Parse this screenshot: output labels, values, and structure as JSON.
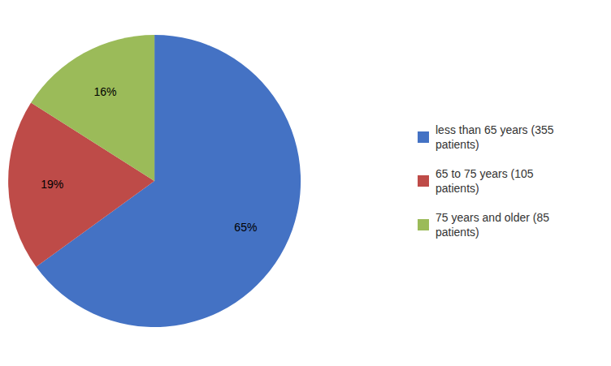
{
  "chart_data": {
    "type": "pie",
    "categories": [
      "less than 65 years (355\npatients)",
      "65 to 75 years (105\npatients)",
      "75 years and older (85\npatients)"
    ],
    "values": [
      65,
      19,
      16
    ],
    "value_labels": [
      "65%",
      "19%",
      "16%"
    ],
    "colors": [
      "#4472C4",
      "#BE4B48",
      "#9BBB59"
    ],
    "data_labels": true,
    "legend": "right"
  }
}
